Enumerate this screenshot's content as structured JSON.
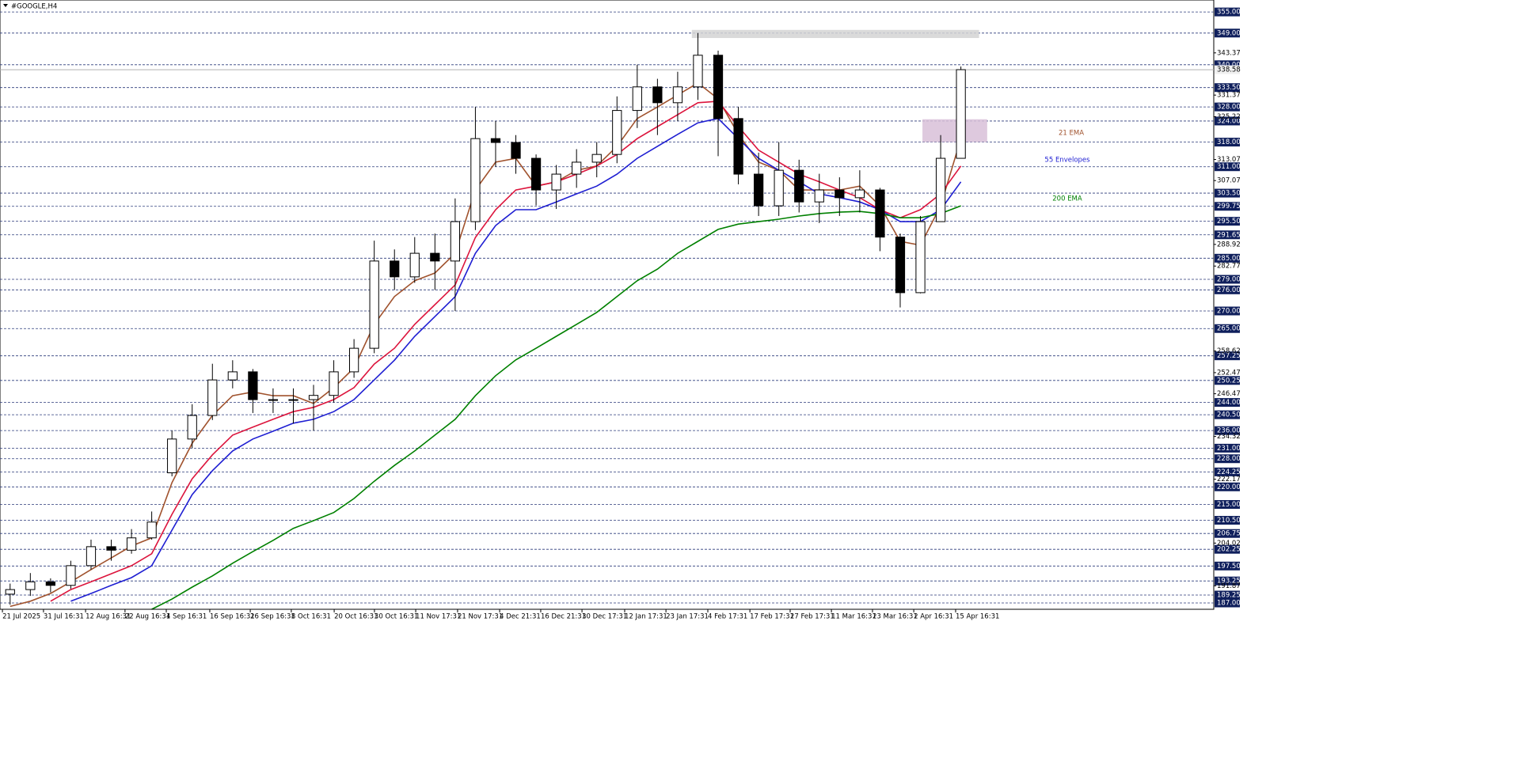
{
  "chart_data": {
    "type": "candlestick",
    "title": "#GOOGLE,H4",
    "xlim": [
      0,
      60
    ],
    "ylim": [
      185.2,
      358.4
    ],
    "xticks": [
      {
        "value": 0.12,
        "label": "21 Jul 2025"
      },
      {
        "value": 2.15,
        "label": "31 Jul 16:31"
      },
      {
        "value": 4.23,
        "label": "12 Aug 16:31"
      },
      {
        "value": 6.18,
        "label": "22 Aug 16:31"
      },
      {
        "value": 8.22,
        "label": "4 Sep 16:31"
      },
      {
        "value": 10.37,
        "label": "16 Sep 16:31"
      },
      {
        "value": 12.37,
        "label": "26 Sep 16:31"
      },
      {
        "value": 14.4,
        "label": "8 Oct 16:31"
      },
      {
        "value": 16.52,
        "label": "20 Oct 16:31"
      },
      {
        "value": 18.51,
        "label": "30 Oct 16:31"
      },
      {
        "value": 20.55,
        "label": "11 Nov 17:31"
      },
      {
        "value": 22.62,
        "label": "21 Nov 17:31"
      },
      {
        "value": 24.7,
        "label": "4 Dec 21:31"
      },
      {
        "value": 26.73,
        "label": "16 Dec 21:31"
      },
      {
        "value": 28.77,
        "label": "30 Dec 17:31"
      },
      {
        "value": 30.88,
        "label": "12 Jan 17:31"
      },
      {
        "value": 32.92,
        "label": "23 Jan 17:31"
      },
      {
        "value": 34.99,
        "label": "4 Feb 17:31"
      },
      {
        "value": 37.07,
        "label": "17 Feb 17:31"
      },
      {
        "value": 39.06,
        "label": "27 Feb 17:31"
      },
      {
        "value": 41.1,
        "label": "11 Mar 16:31"
      },
      {
        "value": 43.13,
        "label": "23 Mar 16:31"
      },
      {
        "value": 45.17,
        "label": "2 Apr 16:31"
      },
      {
        "value": 47.24,
        "label": "15 Apr 16:31"
      }
    ],
    "yticks": [
      343.37,
      331.37,
      325.22,
      313.07,
      307.07,
      288.92,
      282.77,
      258.62,
      252.47,
      246.47,
      234.32,
      222.17,
      204.02,
      191.87
    ],
    "levels": [
      {
        "value": 355,
        "label": "355.00"
      },
      {
        "value": 349,
        "label": "349.00"
      },
      {
        "value": 340,
        "label": "340.00"
      },
      {
        "value": 333.5,
        "label": "333.50"
      },
      {
        "value": 328,
        "label": "328.00"
      },
      {
        "value": 324,
        "label": "324.00"
      },
      {
        "value": 318,
        "label": "318.00"
      },
      {
        "value": 311,
        "label": "311.00"
      },
      {
        "value": 303.5,
        "label": "303.50"
      },
      {
        "value": 299.75,
        "label": "299.75"
      },
      {
        "value": 295.5,
        "label": "295.50"
      },
      {
        "value": 291.65,
        "label": "291.65"
      },
      {
        "value": 285,
        "label": "285.00"
      },
      {
        "value": 279,
        "label": "279.00"
      },
      {
        "value": 276,
        "label": "276.00"
      },
      {
        "value": 270,
        "label": "270.00"
      },
      {
        "value": 265,
        "label": "265.00"
      },
      {
        "value": 257.25,
        "label": "257.25"
      },
      {
        "value": 250.25,
        "label": "250.25"
      },
      {
        "value": 244,
        "label": "244.00"
      },
      {
        "value": 240.5,
        "label": "240.50"
      },
      {
        "value": 236,
        "label": "236.00"
      },
      {
        "value": 231,
        "label": "231.00"
      },
      {
        "value": 228,
        "label": "228.00"
      },
      {
        "value": 224.25,
        "label": "224.25"
      },
      {
        "value": 220,
        "label": "220.00"
      },
      {
        "value": 215,
        "label": "215.00"
      },
      {
        "value": 210.5,
        "label": "210.50"
      },
      {
        "value": 206.75,
        "label": "206.75"
      },
      {
        "value": 202.25,
        "label": "202.25"
      },
      {
        "value": 197.5,
        "label": "197.50"
      },
      {
        "value": 193.25,
        "label": "193.25"
      },
      {
        "value": 189.25,
        "label": "189.25"
      },
      {
        "value": 187,
        "label": "187.00"
      }
    ],
    "current_price": 338.58,
    "grid": true,
    "candles": {
      "open": [
        189.5,
        190.8,
        193,
        192,
        197.6,
        203,
        202,
        205.5,
        224,
        233.6,
        240.3,
        250.4,
        252.7,
        244.8,
        244.8,
        244.8,
        246,
        252.7,
        259.4,
        284.2,
        279.7,
        286.4,
        284.2,
        295.4,
        319,
        317.9,
        313.4,
        304.4,
        308.9,
        312.3,
        314.5,
        327,
        333.7,
        329.2,
        333.7,
        342.7,
        324.7,
        308.9,
        299.9,
        310,
        301,
        304.4,
        302.2,
        304.4,
        291,
        275.2,
        295.4,
        313.4
      ],
      "high": [
        192.5,
        195.5,
        194,
        199,
        205,
        205,
        208,
        213,
        236,
        243.5,
        255,
        256,
        253.5,
        248,
        248,
        249,
        256,
        262,
        290,
        287.5,
        291,
        292,
        302,
        328,
        324,
        320,
        314.5,
        311.5,
        316,
        318,
        331,
        340,
        336,
        338,
        349,
        344,
        328,
        315,
        318,
        313,
        309,
        308,
        310,
        305,
        292,
        297,
        320,
        339.5
      ],
      "low": [
        186.5,
        189,
        190,
        191,
        196.5,
        199,
        201,
        205,
        223,
        231,
        239,
        248,
        241,
        241,
        238,
        236,
        244,
        251,
        258,
        276,
        278,
        276,
        270,
        293,
        311,
        309,
        300,
        299,
        305,
        308,
        312,
        322,
        320,
        324,
        330,
        314,
        306,
        297,
        297,
        298,
        295,
        297,
        298,
        287,
        271,
        275,
        307,
        318
      ],
      "close": [
        190.8,
        193,
        192,
        197.6,
        203,
        202,
        205.5,
        210,
        233.6,
        240.3,
        250.4,
        252.7,
        244.8,
        244.8,
        244.8,
        246,
        252.7,
        259.4,
        284.2,
        279.7,
        286.4,
        284.2,
        295.4,
        319,
        317.9,
        313.4,
        304.4,
        308.9,
        312.3,
        314.5,
        327,
        333.7,
        329.2,
        333.7,
        342.7,
        324.7,
        308.9,
        299.9,
        310,
        301,
        304.4,
        302.2,
        304.4,
        291,
        275.2,
        295.4,
        313.4,
        338.6
      ]
    },
    "series": [
      {
        "name": "21 EMA",
        "color": "#a0522d",
        "values": [
          186,
          187.5,
          189.7,
          193,
          196.5,
          199.8,
          203.2,
          205.5,
          221.2,
          232.4,
          240.3,
          245.9,
          247,
          245.9,
          245.9,
          243.7,
          248.2,
          253.8,
          266.2,
          274.1,
          278.6,
          280.8,
          286.4,
          304.4,
          312.3,
          313.4,
          305.5,
          306.7,
          310,
          311.2,
          316.8,
          324.7,
          328,
          331.4,
          334.8,
          330.3,
          320.2,
          312.3,
          310,
          304.4,
          304.4,
          304.4,
          305.5,
          299.9,
          289.8,
          288.7,
          299.9,
          319
        ]
      },
      {
        "name": "55 Envelopes",
        "color": "#1e1ed2",
        "values": [
          null,
          null,
          null,
          187.5,
          189.7,
          192,
          194.2,
          197.6,
          207.7,
          217.8,
          224.6,
          230.2,
          233.6,
          235.8,
          238.1,
          239.2,
          241.4,
          244.8,
          250.4,
          256,
          262.8,
          268.4,
          274.1,
          286.4,
          294.3,
          298.8,
          298.8,
          301,
          303.3,
          305.5,
          308.9,
          313.4,
          316.8,
          320.2,
          323.5,
          324.7,
          319,
          313.4,
          310,
          306.7,
          303.3,
          302.2,
          301,
          298.8,
          295.4,
          295.4,
          298.8,
          306.7
        ],
        "upper": {
          "color": "#dc143c",
          "values": [
            null,
            null,
            187.5,
            190.8,
            193,
            195.3,
            197.6,
            201,
            212.2,
            222.3,
            229.1,
            234.7,
            237,
            239.2,
            241.4,
            242.6,
            244.8,
            248.2,
            254.9,
            259.4,
            266.2,
            271.8,
            277.4,
            290.9,
            298.8,
            304.4,
            305.5,
            306.7,
            308.9,
            311.2,
            314.5,
            319,
            322.4,
            325.8,
            329.2,
            329.6,
            322.4,
            315.7,
            312.3,
            308.9,
            306.7,
            304.4,
            302.2,
            298.8,
            296.5,
            298.8,
            303.3,
            311.2
          ]
        }
      },
      {
        "name": "200 EMA",
        "color": "#008000",
        "values": [
          null,
          null,
          null,
          null,
          null,
          null,
          null,
          185.2,
          188.1,
          191.5,
          194.7,
          198.3,
          201.6,
          204.8,
          208.2,
          210.4,
          212.7,
          216.7,
          221.6,
          226.1,
          230.2,
          234.7,
          239.2,
          245.9,
          251.6,
          256.1,
          259.4,
          262.8,
          266.2,
          269.6,
          274.1,
          278.6,
          281.9,
          286.4,
          289.8,
          293.2,
          294.7,
          295.4,
          296.1,
          297,
          297.7,
          298.1,
          298.3,
          297.7,
          296.5,
          296.5,
          297.7,
          299.9
        ]
      }
    ],
    "zones": [
      {
        "x": [
          34.2,
          48.4
        ],
        "y": [
          347.6,
          349.9
        ],
        "color": "#d3d3d3"
      },
      {
        "x": [
          45.6,
          48.8
        ],
        "y": [
          318,
          324.5
        ],
        "color": "#d8bfd8"
      }
    ]
  }
}
